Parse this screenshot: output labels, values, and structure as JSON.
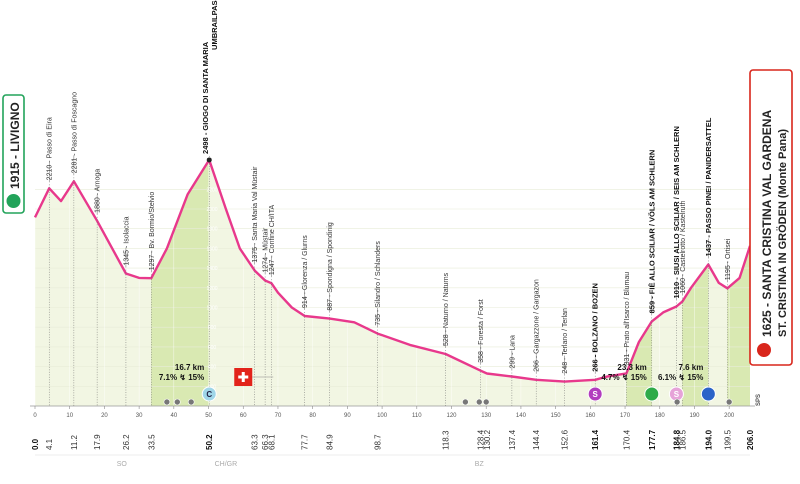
{
  "chart_data": {
    "type": "area",
    "title": "",
    "xlabel": "",
    "ylabel": "",
    "xlim": [
      0,
      206
    ],
    "ylim": [
      0,
      2600
    ],
    "grid": true,
    "colors": {
      "line": "#e8388c",
      "fill_light": "#f2f6e3",
      "fill_climb": "#d9e9b2",
      "marker": "#222222"
    },
    "profile": [
      {
        "x": 0,
        "y": 1915
      },
      {
        "x": 4.1,
        "y": 2210
      },
      {
        "x": 7.5,
        "y": 2080
      },
      {
        "x": 11.2,
        "y": 2281
      },
      {
        "x": 17.9,
        "y": 1880
      },
      {
        "x": 26.2,
        "y": 1345
      },
      {
        "x": 30,
        "y": 1300
      },
      {
        "x": 33.5,
        "y": 1297
      },
      {
        "x": 38,
        "y": 1600
      },
      {
        "x": 44,
        "y": 2150
      },
      {
        "x": 50.2,
        "y": 2498
      },
      {
        "x": 55,
        "y": 2000
      },
      {
        "x": 59,
        "y": 1600
      },
      {
        "x": 63.3,
        "y": 1375
      },
      {
        "x": 66.3,
        "y": 1274
      },
      {
        "x": 68.1,
        "y": 1247
      },
      {
        "x": 70,
        "y": 1150
      },
      {
        "x": 74,
        "y": 1000
      },
      {
        "x": 77.7,
        "y": 914
      },
      {
        "x": 84.9,
        "y": 887
      },
      {
        "x": 92,
        "y": 850
      },
      {
        "x": 98.7,
        "y": 735
      },
      {
        "x": 108,
        "y": 620
      },
      {
        "x": 118.3,
        "y": 528
      },
      {
        "x": 128.4,
        "y": 358
      },
      {
        "x": 130.2,
        "y": 330
      },
      {
        "x": 137.4,
        "y": 299
      },
      {
        "x": 144.4,
        "y": 266
      },
      {
        "x": 152.6,
        "y": 248
      },
      {
        "x": 161.4,
        "y": 266
      },
      {
        "x": 165,
        "y": 300
      },
      {
        "x": 170.4,
        "y": 331
      },
      {
        "x": 174,
        "y": 650
      },
      {
        "x": 177.7,
        "y": 859
      },
      {
        "x": 181,
        "y": 950
      },
      {
        "x": 184.8,
        "y": 1010
      },
      {
        "x": 186.5,
        "y": 1060
      },
      {
        "x": 189,
        "y": 1200
      },
      {
        "x": 194.0,
        "y": 1437
      },
      {
        "x": 197,
        "y": 1250
      },
      {
        "x": 199.5,
        "y": 1195
      },
      {
        "x": 203,
        "y": 1300
      },
      {
        "x": 206.0,
        "y": 1625
      }
    ],
    "y_ticks": [
      200,
      400,
      600,
      800,
      1000,
      1200,
      1400,
      1600,
      1800,
      2000,
      2200
    ],
    "x_ticks": [
      0,
      10,
      20,
      30,
      40,
      50,
      60,
      70,
      80,
      90,
      100,
      110,
      120,
      130,
      140,
      150,
      160,
      170,
      180,
      190,
      200
    ],
    "km_markers": [
      "0.0",
      "4.1",
      "11.2",
      "17.9",
      "26.2",
      "33.5",
      "50.2",
      "63.3",
      "66.3",
      "68.1",
      "77.7",
      "84.9",
      "98.7",
      "118.3",
      "128.4",
      "130.2",
      "137.4",
      "144.4",
      "152.6",
      "161.4",
      "170.4",
      "177.7",
      "184.8",
      "186.5",
      "194.0",
      "199.5",
      "206.0"
    ],
    "km_markers_x": [
      0,
      4.1,
      11.2,
      17.9,
      26.2,
      33.5,
      50.2,
      63.3,
      66.3,
      68.1,
      77.7,
      84.9,
      98.7,
      118.3,
      128.4,
      130.2,
      137.4,
      144.4,
      152.6,
      161.4,
      170.4,
      177.7,
      184.8,
      186.5,
      194.0,
      199.5,
      206.0
    ],
    "km_bold": [
      "0.0",
      "50.2",
      "161.4",
      "177.7",
      "184.8",
      "194.0",
      "206.0"
    ],
    "waypoints": [
      {
        "x": 4.1,
        "y": 2210,
        "text": "2210 - Passo di Eira",
        "bold": false
      },
      {
        "x": 11.2,
        "y": 2281,
        "text": "2281 - Passo di Foscagno",
        "bold": false
      },
      {
        "x": 17.9,
        "y": 1880,
        "text": "1880 - Arnoga",
        "bold": false
      },
      {
        "x": 26.2,
        "y": 1345,
        "text": "1345 - Isolaccia",
        "bold": false
      },
      {
        "x": 33.5,
        "y": 1297,
        "text": "1297 - Bv. Bormio/Stelvio",
        "bold": false
      },
      {
        "x": 63.3,
        "y": 1375,
        "text": "1375 - Santa Maria Val Müstair",
        "bold": false
      },
      {
        "x": 66.3,
        "y": 1274,
        "text": "1274 - Müstair",
        "bold": false
      },
      {
        "x": 68.1,
        "y": 1247,
        "text": "1247 - Confine CH/ITA",
        "bold": false
      },
      {
        "x": 77.7,
        "y": 914,
        "text": "914 - Glorenza / Glurns",
        "bold": false
      },
      {
        "x": 84.9,
        "y": 887,
        "text": "887 - Spondigna / Spondinig",
        "bold": false
      },
      {
        "x": 98.7,
        "y": 735,
        "text": "735 - Silandro / Schlanders",
        "bold": false
      },
      {
        "x": 118.3,
        "y": 528,
        "text": "528 - Naturno / Naturns",
        "bold": false
      },
      {
        "x": 128.4,
        "y": 358,
        "text": "358 - Foresta / Forst",
        "bold": false
      },
      {
        "x": 137.4,
        "y": 299,
        "text": "299 - Lana",
        "bold": false
      },
      {
        "x": 144.4,
        "y": 266,
        "text": "266 - Gargazzone / Gargazon",
        "bold": false
      },
      {
        "x": 152.6,
        "y": 248,
        "text": "248 - Terlano / Terlan",
        "bold": false
      },
      {
        "x": 161.4,
        "y": 266,
        "text": "266 - BOLZANO / BOZEN",
        "bold": true
      },
      {
        "x": 170.4,
        "y": 331,
        "text": "331 - Prato all'Isarco / Blumau",
        "bold": false
      },
      {
        "x": 177.7,
        "y": 859,
        "text": "859 - FIÈ ALLO SCILIAR / VÖLS AM SCHLERN",
        "bold": true
      },
      {
        "x": 184.8,
        "y": 1010,
        "text": "1010 - SIUSI ALLO SCILIAR / SEIS AM SCHLERN",
        "bold": true
      },
      {
        "x": 186.5,
        "y": 1060,
        "text": "1060 - Castelrotto / Kastelruth",
        "bold": false
      },
      {
        "x": 194.0,
        "y": 1437,
        "text": "1437 - PASSO PINEI / PANIDERSATTEL",
        "bold": true
      },
      {
        "x": 199.5,
        "y": 1195,
        "text": "1195 - Ortisei",
        "bold": false
      }
    ],
    "summit": {
      "x": 50.2,
      "line1": "2498 - GIOGO DI SANTA MARIA",
      "line2": "UMBRAILPASS"
    },
    "start": {
      "label": "1915 - LIVIGNO",
      "color": "#22a35a"
    },
    "finish": {
      "label1": "1625 - SANTA CRISTINA VAL GARDENA",
      "label2": "ST. CRISTINA IN GRÖDEN (Monte Pana)",
      "color": "#d9261c"
    },
    "climbs": [
      {
        "x": 50.2,
        "km": "16.7 km",
        "gradient": "7.1% ↯ 15%",
        "badge": "C",
        "badge_color": "#9fd6e8"
      },
      {
        "x": 177.7,
        "km": "23.3 km",
        "gradient": "4.7% ↯ 15%",
        "badge": "",
        "badge_color": "#2eaa4a"
      },
      {
        "x": 194.0,
        "km": "7.6 km",
        "gradient": "6.1% ↯ 15%",
        "badge": "",
        "badge_color": "#2b63c8"
      }
    ],
    "sprints": [
      {
        "x": 161.4,
        "label": "S",
        "color": "#b23cbe"
      },
      {
        "x": 184.8,
        "label": "S",
        "color": "#e6a3d8"
      }
    ],
    "bottom_icons": [
      38,
      41,
      45,
      124,
      128,
      130,
      185,
      200
    ],
    "flag_x": 60,
    "regions": [
      {
        "x": 25,
        "text": "SO"
      },
      {
        "x": 55,
        "text": "CH/GR"
      },
      {
        "x": 128,
        "text": "BZ"
      }
    ],
    "sps": {
      "x": 206,
      "text": "SPS"
    }
  }
}
